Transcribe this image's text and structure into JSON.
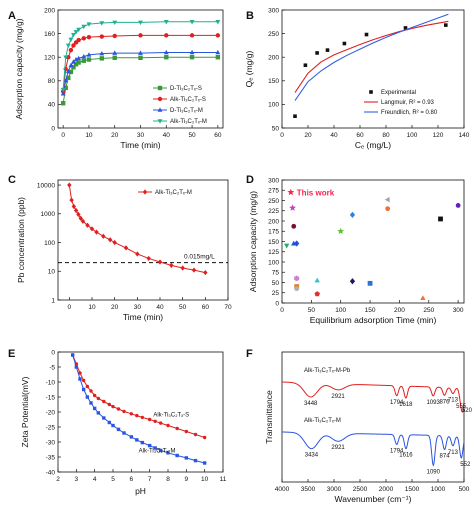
{
  "chart_data": [
    {
      "panel": "A",
      "type": "line",
      "xlabel": "Time (min)",
      "ylabel": "Adsorption capacity (mg/g)",
      "xlim": [
        -2,
        62
      ],
      "ylim": [
        0,
        200
      ],
      "xticks": [
        0,
        10,
        20,
        30,
        40,
        50,
        60
      ],
      "yticks": [
        0,
        40,
        80,
        120,
        160,
        200
      ],
      "legend_position": "center-right",
      "series": [
        {
          "name": "D-Ti₃C₂Tₓ-S",
          "marker": "square",
          "color": "#3a9a3a",
          "x": [
            0,
            1,
            2,
            3,
            4,
            5,
            6,
            8,
            10,
            15,
            20,
            30,
            40,
            50,
            60
          ],
          "y": [
            42,
            68,
            85,
            95,
            103,
            108,
            111,
            114,
            116,
            118,
            119,
            119,
            120,
            120,
            120
          ]
        },
        {
          "name": "Alk-Ti₃C₂Tₓ-S",
          "marker": "circle",
          "color": "#e02020",
          "x": [
            0,
            1,
            2,
            3,
            4,
            5,
            6,
            8,
            10,
            15,
            20,
            30,
            40,
            50,
            60
          ],
          "y": [
            62,
            100,
            120,
            132,
            140,
            145,
            149,
            152,
            154,
            155,
            156,
            157,
            157,
            157,
            157
          ]
        },
        {
          "name": "D-Ti₃C₂Tₓ-M",
          "marker": "triangle",
          "color": "#2a55e0",
          "x": [
            0,
            1,
            2,
            3,
            4,
            5,
            6,
            8,
            10,
            15,
            20,
            30,
            40,
            50,
            60
          ],
          "y": [
            58,
            80,
            96,
            106,
            112,
            116,
            118,
            121,
            124,
            126,
            127,
            127,
            128,
            128,
            128
          ]
        },
        {
          "name": "Alk-Ti₃C₂Tₓ-M",
          "marker": "triangle-down",
          "color": "#20b090",
          "x": [
            0,
            1,
            2,
            3,
            4,
            5,
            6,
            8,
            10,
            15,
            20,
            30,
            40,
            50,
            60
          ],
          "y": [
            65,
            120,
            140,
            150,
            158,
            163,
            167,
            172,
            176,
            178,
            179,
            179,
            180,
            180,
            180
          ]
        }
      ]
    },
    {
      "panel": "B",
      "type": "scatter",
      "xlabel": "Cₑ (mg/L)",
      "ylabel": "Qₑ (mg/g)",
      "xlim": [
        0,
        140
      ],
      "ylim": [
        50,
        300
      ],
      "xticks": [
        0,
        20,
        40,
        60,
        80,
        100,
        120,
        140
      ],
      "yticks": [
        50,
        100,
        150,
        200,
        250,
        300
      ],
      "legend_position": "bottom-right",
      "series": [
        {
          "name": "Experimental",
          "marker": "square",
          "color": "#111111",
          "x": [
            10,
            18,
            27,
            35,
            48,
            65,
            95,
            126
          ],
          "y": [
            75,
            183,
            209,
            215,
            229,
            248,
            262,
            268
          ]
        },
        {
          "name": "Langmuir, R² = 0.93",
          "type": "line",
          "color": "#e02020",
          "x": [
            10,
            20,
            30,
            40,
            50,
            60,
            70,
            80,
            90,
            100,
            110,
            120,
            128
          ],
          "y": [
            125,
            166,
            190,
            205,
            216,
            227,
            237,
            246,
            254,
            261,
            267,
            272,
            276
          ]
        },
        {
          "name": "Freundlich, R² = 0.80",
          "type": "line",
          "color": "#3060e0",
          "x": [
            10,
            20,
            30,
            40,
            50,
            60,
            70,
            80,
            90,
            100,
            110,
            120,
            128
          ],
          "y": [
            108,
            148,
            171,
            189,
            204,
            217,
            230,
            242,
            253,
            263,
            273,
            283,
            291
          ]
        }
      ]
    },
    {
      "panel": "C",
      "type": "line",
      "log_y": true,
      "xlabel": "Time (min)",
      "ylabel": "Pb concentration (ppb)",
      "xlim": [
        -5,
        70
      ],
      "ylim": [
        1,
        15000
      ],
      "xticks": [
        0,
        10,
        20,
        30,
        40,
        50,
        60,
        70
      ],
      "yticks": [
        1,
        10,
        100,
        1000,
        10000
      ],
      "legend_position": "top-right",
      "reference_line": {
        "y": 20,
        "label": "0.015mg/L"
      },
      "series": [
        {
          "name": "Alk-Ti₃C₂Tₓ-M",
          "marker": "diamond",
          "color": "#e02020",
          "x": [
            0,
            1,
            2,
            3,
            4,
            5,
            6,
            8,
            10,
            12,
            15,
            18,
            20,
            25,
            30,
            35,
            40,
            45,
            50,
            55,
            60
          ],
          "y": [
            10000,
            3000,
            1800,
            1300,
            950,
            700,
            550,
            400,
            300,
            230,
            165,
            125,
            100,
            65,
            40,
            28,
            21,
            16,
            13,
            11,
            9
          ]
        }
      ]
    },
    {
      "panel": "D",
      "type": "scatter",
      "xlabel": "Equilibrium adsorption Time (min)",
      "ylabel": "Adsorption capacity (mg/g)",
      "xlim": [
        0,
        310
      ],
      "ylim": [
        0,
        300
      ],
      "xticks": [
        0,
        50,
        100,
        150,
        200,
        250,
        300
      ],
      "yticks": [
        0,
        25,
        50,
        75,
        100,
        125,
        150,
        175,
        200,
        225,
        250,
        275,
        300
      ],
      "annotation": "This work",
      "points": [
        {
          "x": 15,
          "y": 270,
          "marker": "star",
          "color": "#ff2050"
        },
        {
          "x": 8,
          "y": 140,
          "marker": "triangle-down",
          "color": "#20b060"
        },
        {
          "x": 18,
          "y": 232,
          "marker": "star",
          "color": "#c040c0"
        },
        {
          "x": 20,
          "y": 187,
          "marker": "circle",
          "color": "#7a1030"
        },
        {
          "x": 20,
          "y": 145,
          "marker": "triangle",
          "color": "#2050e0"
        },
        {
          "x": 25,
          "y": 145,
          "marker": "diamond",
          "color": "#2050e0"
        },
        {
          "x": 25,
          "y": 60,
          "marker": "hexagon",
          "color": "#d080d0"
        },
        {
          "x": 25,
          "y": 40,
          "marker": "square",
          "color": "#e08020"
        },
        {
          "x": 25,
          "y": 35,
          "marker": "circle",
          "color": "#b0b0b0"
        },
        {
          "x": 60,
          "y": 22,
          "marker": "pentagon",
          "color": "#e03030"
        },
        {
          "x": 60,
          "y": 55,
          "marker": "triangle",
          "color": "#30c0d0"
        },
        {
          "x": 100,
          "y": 175,
          "marker": "star",
          "color": "#60c030"
        },
        {
          "x": 120,
          "y": 215,
          "marker": "diamond",
          "color": "#3080e0"
        },
        {
          "x": 120,
          "y": 53,
          "marker": "diamond",
          "color": "#1a1a60"
        },
        {
          "x": 150,
          "y": 48,
          "marker": "square",
          "color": "#3070d0"
        },
        {
          "x": 180,
          "y": 252,
          "marker": "triangle-left",
          "color": "#a0a0a0"
        },
        {
          "x": 180,
          "y": 230,
          "marker": "circle",
          "color": "#f07030"
        },
        {
          "x": 240,
          "y": 12,
          "marker": "triangle",
          "color": "#f07040"
        },
        {
          "x": 270,
          "y": 205,
          "marker": "square",
          "color": "#111111"
        },
        {
          "x": 300,
          "y": 238,
          "marker": "circle",
          "color": "#6020c0"
        }
      ]
    },
    {
      "panel": "E",
      "type": "line",
      "xlabel": "pH",
      "ylabel": "Zeta Potential(mV)",
      "xlim": [
        2,
        11
      ],
      "ylim": [
        -40,
        0
      ],
      "xticks": [
        2,
        3,
        4,
        5,
        6,
        7,
        8,
        9,
        10,
        11
      ],
      "yticks": [
        0,
        -5,
        -10,
        -15,
        -20,
        -25,
        -30,
        -35,
        -40
      ],
      "series": [
        {
          "name": "Alk-Ti₃C₂Tₓ-S",
          "marker": "circle",
          "color": "#e02020",
          "x": [
            2.8,
            3.0,
            3.2,
            3.4,
            3.6,
            3.8,
            4.0,
            4.2,
            4.5,
            4.8,
            5.0,
            5.3,
            5.6,
            6.0,
            6.3,
            6.6,
            7.0,
            7.3,
            7.6,
            8.0,
            8.5,
            9.0,
            9.5,
            10.0
          ],
          "y": [
            -1,
            -4,
            -7,
            -9.5,
            -11.5,
            -13,
            -14.5,
            -15.5,
            -16.5,
            -17.5,
            -18.2,
            -19,
            -19.8,
            -20.6,
            -21.2,
            -21.8,
            -22.5,
            -23.1,
            -23.7,
            -24.5,
            -25.5,
            -26.5,
            -27.5,
            -28.5
          ]
        },
        {
          "name": "Alk-Ti₃C₂Tₓ-M",
          "marker": "square",
          "color": "#2a55e0",
          "x": [
            2.8,
            3.0,
            3.2,
            3.4,
            3.6,
            3.8,
            4.0,
            4.2,
            4.5,
            4.8,
            5.0,
            5.3,
            5.6,
            6.0,
            6.3,
            6.6,
            7.0,
            7.3,
            7.6,
            8.0,
            8.5,
            9.0,
            9.5,
            10.0
          ],
          "y": [
            -1,
            -5,
            -9,
            -12.5,
            -15,
            -17,
            -18.8,
            -20.3,
            -22,
            -23.5,
            -24.5,
            -25.8,
            -27,
            -28.3,
            -29.3,
            -30.2,
            -31.2,
            -32,
            -32.8,
            -33.6,
            -34.5,
            -35.3,
            -36.2,
            -37
          ]
        }
      ]
    },
    {
      "panel": "F",
      "type": "line",
      "xlabel": "Wavenumber (cm⁻¹)",
      "ylabel": "Transmittance",
      "xlim": [
        4000,
        500
      ],
      "xticks": [
        4000,
        3500,
        3000,
        2500,
        2000,
        1500,
        1000,
        500
      ],
      "series": [
        {
          "name": "Alk-Ti₃C₂Tₓ-M-Pb",
          "color": "#e02020",
          "peaks": [
            {
              "label": "3448",
              "x": 3448
            },
            {
              "label": "2921",
              "x": 2921
            },
            {
              "label": "1794",
              "x": 1794
            },
            {
              "label": "1618",
              "x": 1618
            },
            {
              "label": "1093",
              "x": 1093
            },
            {
              "label": "876",
              "x": 876
            },
            {
              "label": "713",
              "x": 713
            },
            {
              "label": "555",
              "x": 555
            },
            {
              "label": "520",
              "x": 520
            }
          ]
        },
        {
          "name": "Alk-Ti₃C₂Tₓ-M",
          "color": "#2a55e0",
          "peaks": [
            {
              "label": "3434",
              "x": 3434
            },
            {
              "label": "2921",
              "x": 2921
            },
            {
              "label": "1794",
              "x": 1794
            },
            {
              "label": "1616",
              "x": 1616
            },
            {
              "label": "1090",
              "x": 1090
            },
            {
              "label": "874",
              "x": 874
            },
            {
              "label": "713",
              "x": 713
            },
            {
              "label": "552",
              "x": 552
            }
          ]
        }
      ]
    }
  ]
}
